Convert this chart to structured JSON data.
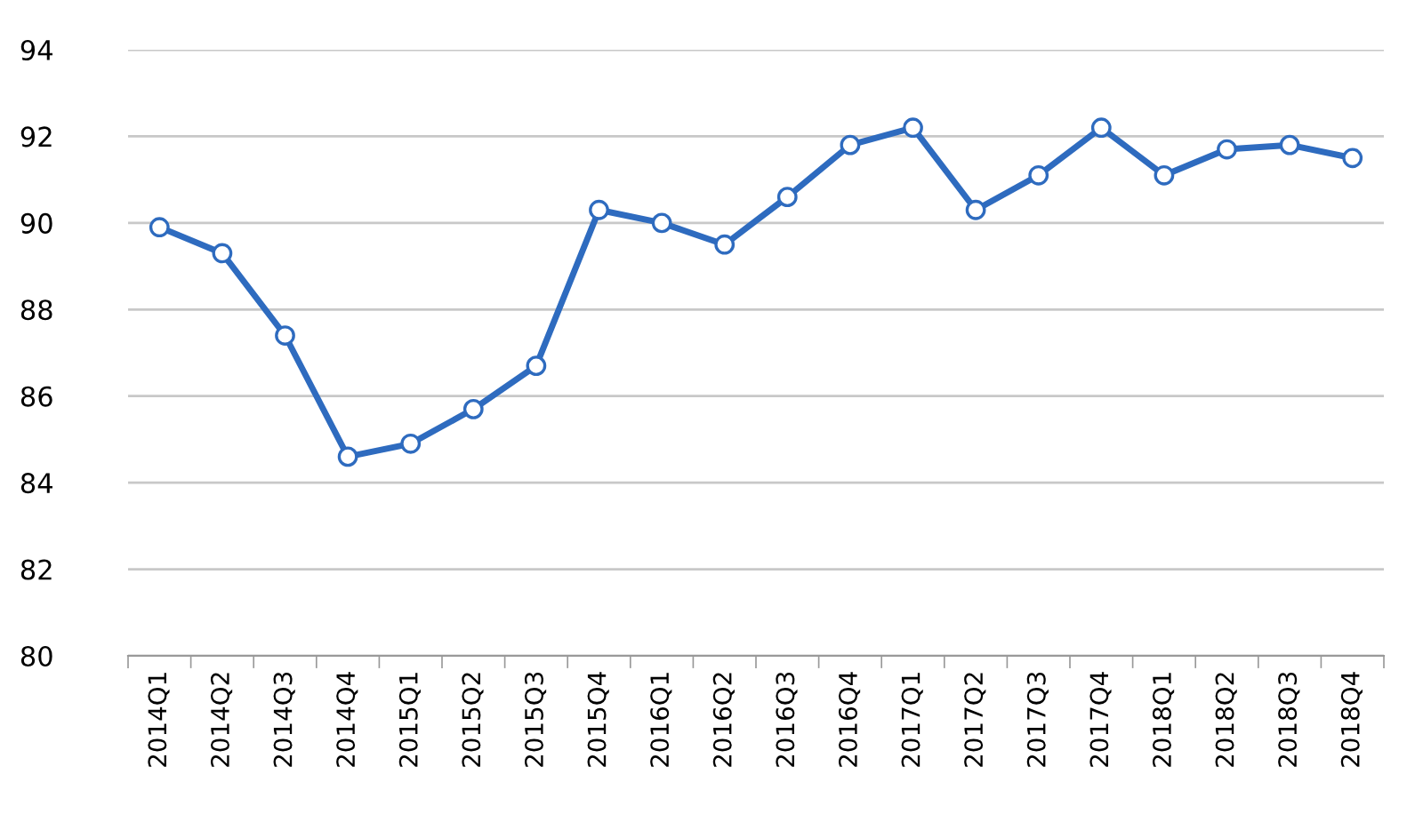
{
  "chart_data": {
    "type": "line",
    "categories": [
      "2014Q1",
      "2014Q2",
      "2014Q3",
      "2014Q4",
      "2015Q1",
      "2015Q2",
      "2015Q3",
      "2015Q4",
      "2016Q1",
      "2016Q2",
      "2016Q3",
      "2016Q4",
      "2017Q1",
      "2017Q2",
      "2017Q3",
      "2017Q4",
      "2018Q1",
      "2018Q2",
      "2018Q3",
      "2018Q4"
    ],
    "series": [
      {
        "color": "#2e6bbf",
        "values": [
          89.9,
          89.3,
          87.4,
          84.6,
          84.9,
          85.7,
          86.7,
          90.3,
          90.0,
          89.5,
          90.6,
          91.8,
          92.2,
          90.3,
          91.1,
          92.2,
          91.1,
          91.7,
          91.8,
          91.5
        ]
      }
    ],
    "ylim": [
      80,
      94
    ],
    "yticks": [
      80,
      82,
      84,
      86,
      88,
      90,
      92,
      94
    ],
    "grid": "y",
    "marker": "circle",
    "line_style": "solid",
    "legend": false
  }
}
